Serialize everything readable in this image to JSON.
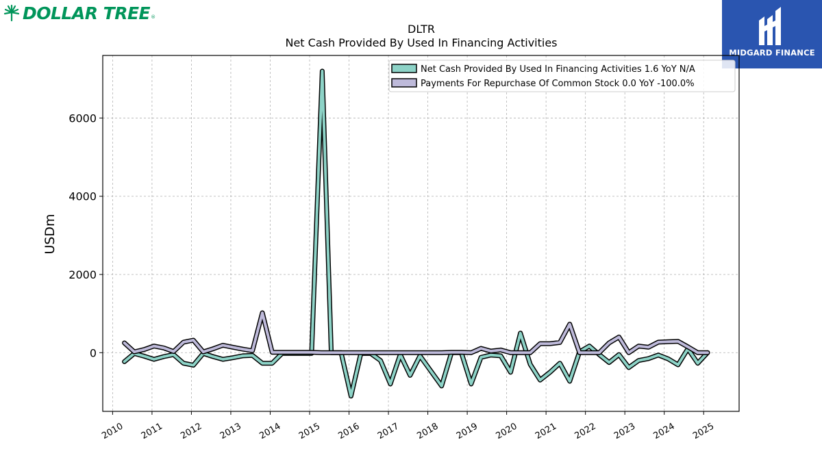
{
  "brand_left": {
    "name": "DOLLAR TREE",
    "reg": "®"
  },
  "brand_right": {
    "name": "MIDGARD FINANCE"
  },
  "chart_data": {
    "type": "line",
    "title": "DLTR",
    "subtitle": "Net Cash Provided By Used In Financing Activities",
    "xlabel": "",
    "ylabel": "USDm",
    "ylim": [
      -1500,
      7600
    ],
    "xlim": [
      2009.75,
      2025.9
    ],
    "yticks": [
      0,
      2000,
      4000,
      6000
    ],
    "xticks": [
      2010,
      2011,
      2012,
      2013,
      2014,
      2015,
      2016,
      2017,
      2018,
      2019,
      2020,
      2021,
      2022,
      2023,
      2024,
      2025
    ],
    "xtick_labels": [
      "2010",
      "2011",
      "2012",
      "2013",
      "2014",
      "2015",
      "2016",
      "2017",
      "2018",
      "2019",
      "2020",
      "2021",
      "2022",
      "2023",
      "2024",
      "2025"
    ],
    "grid": true,
    "legend_position": "upper right",
    "colors": {
      "series1": "#8dd3c7",
      "series2": "#bebada",
      "outline": "#000000"
    },
    "series": [
      {
        "name": "Net Cash Provided By Used In Financing Activities",
        "legend_label": "Net Cash Provided By Used In Financing Activities  1.6 YoY N/A",
        "points": [
          [
            2010.3,
            -230
          ],
          [
            2010.55,
            -20
          ],
          [
            2010.8,
            -90
          ],
          [
            2011.05,
            -170
          ],
          [
            2011.3,
            -100
          ],
          [
            2011.55,
            -50
          ],
          [
            2011.8,
            -270
          ],
          [
            2012.05,
            -320
          ],
          [
            2012.3,
            -20
          ],
          [
            2012.55,
            -100
          ],
          [
            2012.8,
            -170
          ],
          [
            2013.05,
            -130
          ],
          [
            2013.3,
            -80
          ],
          [
            2013.55,
            -70
          ],
          [
            2013.8,
            -270
          ],
          [
            2014.05,
            -270
          ],
          [
            2014.3,
            -20
          ],
          [
            2014.55,
            -20
          ],
          [
            2014.8,
            -20
          ],
          [
            2015.05,
            -20
          ],
          [
            2015.32,
            7200
          ],
          [
            2015.55,
            0
          ],
          [
            2015.8,
            0
          ],
          [
            2016.05,
            -1110
          ],
          [
            2016.3,
            -20
          ],
          [
            2016.55,
            -20
          ],
          [
            2016.8,
            -200
          ],
          [
            2017.05,
            -800
          ],
          [
            2017.3,
            -50
          ],
          [
            2017.55,
            -580
          ],
          [
            2017.8,
            -80
          ],
          [
            2018.05,
            -430
          ],
          [
            2018.35,
            -850
          ],
          [
            2018.6,
            0
          ],
          [
            2018.85,
            0
          ],
          [
            2019.1,
            -800
          ],
          [
            2019.35,
            -120
          ],
          [
            2019.6,
            -60
          ],
          [
            2019.85,
            -80
          ],
          [
            2020.1,
            -500
          ],
          [
            2020.35,
            500
          ],
          [
            2020.6,
            -300
          ],
          [
            2020.85,
            -700
          ],
          [
            2021.1,
            -500
          ],
          [
            2021.35,
            -270
          ],
          [
            2021.6,
            -730
          ],
          [
            2021.85,
            20
          ],
          [
            2022.1,
            170
          ],
          [
            2022.35,
            -50
          ],
          [
            2022.6,
            -250
          ],
          [
            2022.85,
            -50
          ],
          [
            2023.1,
            -380
          ],
          [
            2023.35,
            -200
          ],
          [
            2023.6,
            -150
          ],
          [
            2023.85,
            -60
          ],
          [
            2024.1,
            -160
          ],
          [
            2024.35,
            -310
          ],
          [
            2024.6,
            100
          ],
          [
            2024.85,
            -270
          ],
          [
            2025.1,
            2
          ]
        ]
      },
      {
        "name": "Payments For Repurchase Of Common Stock",
        "legend_label": "Payments For Repurchase Of Common Stock  0.0 YoY -100.0%",
        "points": [
          [
            2010.3,
            250
          ],
          [
            2010.55,
            20
          ],
          [
            2010.8,
            80
          ],
          [
            2011.05,
            170
          ],
          [
            2011.3,
            120
          ],
          [
            2011.55,
            30
          ],
          [
            2011.8,
            270
          ],
          [
            2012.05,
            320
          ],
          [
            2012.3,
            20
          ],
          [
            2012.55,
            100
          ],
          [
            2012.8,
            190
          ],
          [
            2013.05,
            140
          ],
          [
            2013.3,
            90
          ],
          [
            2013.55,
            50
          ],
          [
            2013.8,
            1020
          ],
          [
            2014.05,
            10
          ],
          [
            2014.3,
            10
          ],
          [
            2014.55,
            10
          ],
          [
            2014.8,
            10
          ],
          [
            2015.05,
            10
          ],
          [
            2015.3,
            0
          ],
          [
            2015.55,
            0
          ],
          [
            2015.8,
            0
          ],
          [
            2016.05,
            0
          ],
          [
            2016.3,
            0
          ],
          [
            2016.55,
            0
          ],
          [
            2016.8,
            0
          ],
          [
            2017.05,
            0
          ],
          [
            2017.3,
            0
          ],
          [
            2017.55,
            0
          ],
          [
            2017.8,
            0
          ],
          [
            2018.05,
            0
          ],
          [
            2018.35,
            0
          ],
          [
            2018.6,
            10
          ],
          [
            2018.85,
            10
          ],
          [
            2019.1,
            0
          ],
          [
            2019.35,
            110
          ],
          [
            2019.6,
            40
          ],
          [
            2019.85,
            70
          ],
          [
            2020.1,
            0
          ],
          [
            2020.35,
            0
          ],
          [
            2020.6,
            0
          ],
          [
            2020.85,
            230
          ],
          [
            2021.1,
            230
          ],
          [
            2021.35,
            260
          ],
          [
            2021.6,
            730
          ],
          [
            2021.85,
            0
          ],
          [
            2022.1,
            0
          ],
          [
            2022.35,
            0
          ],
          [
            2022.6,
            250
          ],
          [
            2022.85,
            400
          ],
          [
            2023.1,
            0
          ],
          [
            2023.35,
            170
          ],
          [
            2023.6,
            140
          ],
          [
            2023.85,
            270
          ],
          [
            2024.1,
            280
          ],
          [
            2024.35,
            290
          ],
          [
            2024.6,
            150
          ],
          [
            2024.85,
            0
          ],
          [
            2025.1,
            0
          ]
        ]
      }
    ]
  }
}
